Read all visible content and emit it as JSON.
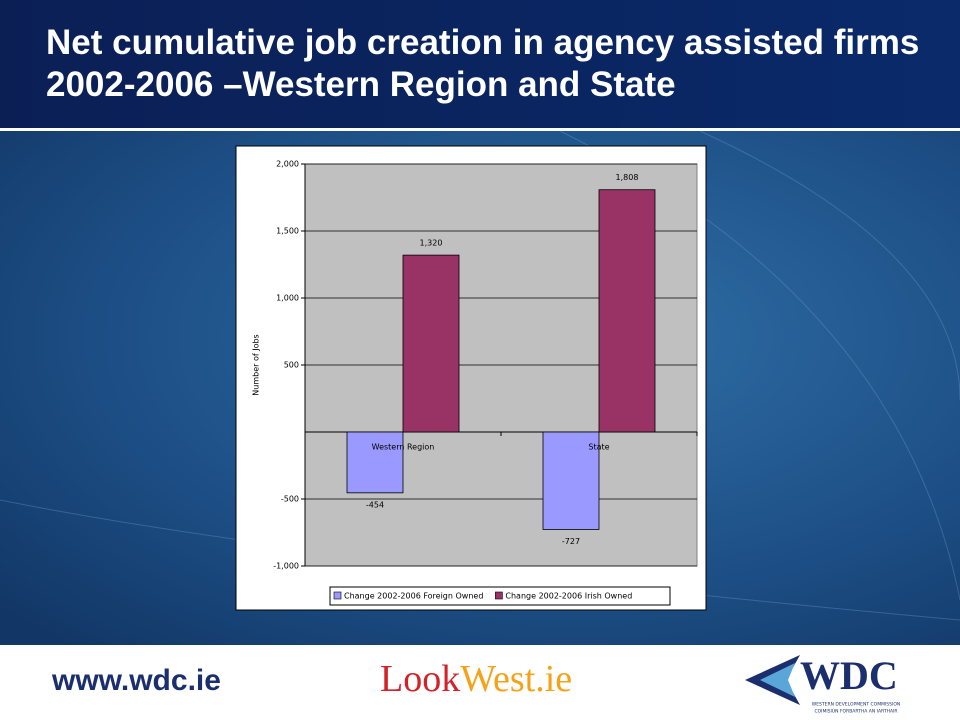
{
  "chart_data": {
    "type": "bar",
    "title": "Net cumulative job creation in agency assisted firms 2002-2006 –Western Region and State",
    "y_label": "Number of Jobs",
    "categories": [
      "Western Region",
      "State"
    ],
    "series": [
      {
        "name": "Change 2002-2006 Foreign Owned",
        "color": "#9999ff",
        "values": [
          -454,
          -727
        ],
        "value_labels": [
          "-454",
          "-727"
        ]
      },
      {
        "name": "Change 2002-2006 Irish Owned",
        "color": "#993366",
        "values": [
          1320,
          1808
        ],
        "value_labels": [
          "1,320",
          "1,808"
        ]
      }
    ],
    "ylim": [
      -1000,
      2000
    ],
    "yticks": [
      {
        "value": -1000,
        "label": "-1,000"
      },
      -500,
      500,
      {
        "value": 1000,
        "label": "1,000"
      },
      {
        "value": 1500,
        "label": "1,500"
      },
      {
        "value": 2000,
        "label": "2,000"
      }
    ],
    "grid": true,
    "legend": "bottom"
  },
  "footer": {
    "website": "www.wdc.ie",
    "lookwest_look": "Look",
    "lookwest_rest": "West.ie",
    "logo": "WDC",
    "logo_line1": "WESTERN DEVELOPMENT COMMISSION",
    "logo_line2": "COIMISIÚN FORBARTHA AN IARTHAIR"
  }
}
